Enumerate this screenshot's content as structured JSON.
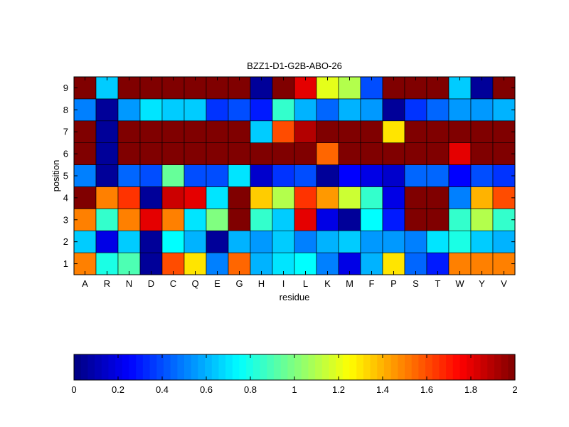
{
  "chart_data": {
    "type": "heatmap",
    "title": "BZZ1-D1-G2B-ABO-26",
    "xlabel": "residue",
    "ylabel": "position",
    "x": [
      "A",
      "R",
      "N",
      "D",
      "C",
      "Q",
      "E",
      "G",
      "H",
      "I",
      "L",
      "K",
      "M",
      "F",
      "P",
      "S",
      "T",
      "W",
      "Y",
      "V"
    ],
    "y": [
      "1",
      "2",
      "3",
      "4",
      "5",
      "6",
      "7",
      "8",
      "9"
    ],
    "values": [
      [
        1.5,
        0.8,
        0.9,
        0.05,
        1.6,
        1.3,
        0.5,
        1.55,
        0.6,
        0.7,
        0.75,
        0.5,
        0.2,
        0.6,
        1.3,
        0.45,
        0.3,
        1.5,
        1.5,
        1.5
      ],
      [
        0.65,
        0.2,
        0.65,
        0.05,
        0.75,
        0.6,
        0.05,
        0.6,
        0.55,
        0.65,
        0.5,
        0.6,
        0.65,
        0.55,
        0.55,
        0.5,
        0.7,
        0.8,
        0.65,
        0.6
      ],
      [
        1.5,
        0.85,
        1.5,
        1.8,
        1.5,
        0.7,
        1.0,
        2.0,
        0.85,
        0.65,
        1.8,
        0.2,
        0.05,
        0.75,
        0.3,
        2.0,
        2.0,
        0.85,
        1.1,
        0.85
      ],
      [
        2.0,
        1.5,
        1.65,
        0.05,
        1.85,
        1.8,
        0.7,
        2.0,
        1.35,
        1.1,
        1.65,
        1.45,
        1.15,
        0.85,
        0.2,
        2.0,
        2.0,
        0.5,
        1.4,
        1.6
      ],
      [
        0.5,
        0.05,
        0.45,
        0.4,
        0.95,
        0.4,
        0.4,
        0.7,
        0.15,
        0.35,
        0.4,
        0.05,
        0.25,
        0.2,
        0.15,
        0.45,
        0.45,
        0.25,
        0.4,
        0.35
      ],
      [
        2.0,
        0.05,
        2.0,
        2.0,
        2.0,
        2.0,
        2.0,
        2.0,
        2.0,
        2.0,
        2.0,
        1.55,
        2.0,
        2.0,
        2.0,
        2.0,
        2.0,
        1.8,
        2.0,
        2.0
      ],
      [
        2.0,
        0.05,
        2.0,
        2.0,
        2.0,
        2.0,
        2.0,
        2.0,
        0.65,
        1.6,
        1.9,
        2.0,
        2.0,
        2.0,
        1.3,
        2.0,
        2.0,
        2.0,
        2.0,
        2.0
      ],
      [
        0.5,
        0.05,
        0.55,
        0.7,
        0.65,
        0.65,
        0.35,
        0.4,
        0.3,
        0.85,
        0.6,
        0.45,
        0.6,
        0.55,
        0.05,
        0.35,
        0.45,
        0.55,
        0.55,
        0.6
      ],
      [
        2.0,
        0.65,
        2.0,
        2.0,
        2.0,
        2.0,
        2.0,
        2.0,
        0.05,
        2.0,
        1.8,
        1.2,
        1.1,
        0.4,
        2.0,
        2.0,
        2.0,
        0.65,
        0.05,
        2.0
      ]
    ],
    "zlim": [
      0,
      2
    ],
    "colormap": "jet",
    "colorbar": {
      "placement": "bottom",
      "ticks": [
        0,
        0.2,
        0.4,
        0.6,
        0.8,
        1,
        1.2,
        1.4,
        1.6,
        1.8,
        2
      ],
      "tick_labels": [
        "0",
        "0.2",
        "0.4",
        "0.6",
        "0.8",
        "1",
        "1.2",
        "1.4",
        "1.6",
        "1.8",
        "2"
      ]
    },
    "grid": false
  }
}
